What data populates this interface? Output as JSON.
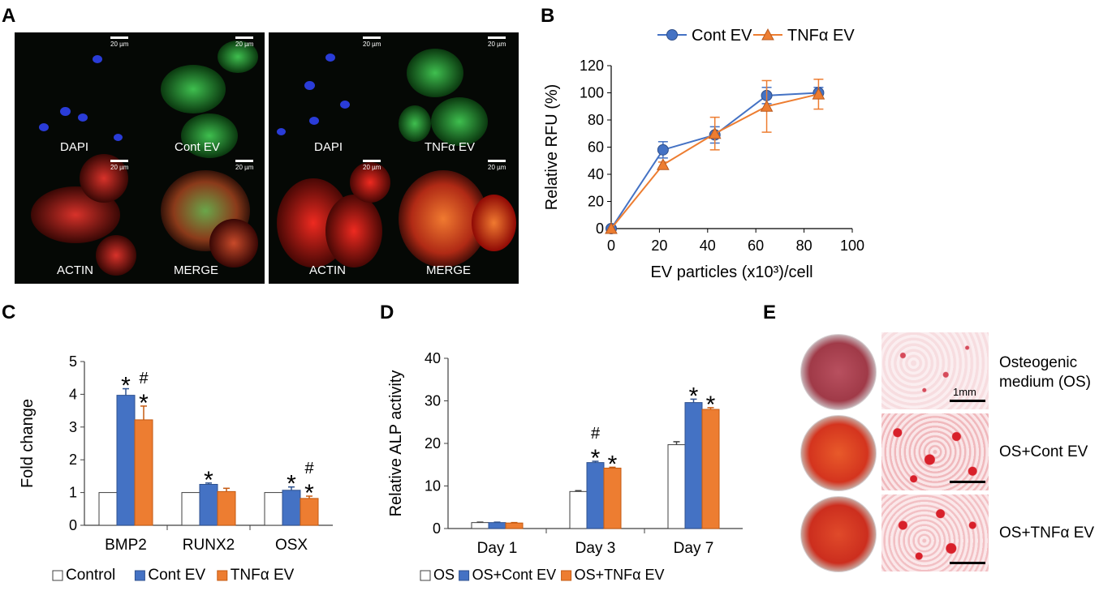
{
  "panels": {
    "a": "A",
    "b": "B",
    "c": "C",
    "d": "D",
    "e": "E"
  },
  "panel_a": {
    "scale_text": "20 µm",
    "left_block": {
      "top_left": "DAPI",
      "top_right": "Cont EV",
      "bottom_left": "ACTIN",
      "bottom_right": "MERGE"
    },
    "right_block": {
      "top_left": "DAPI",
      "top_right": "TNFα EV",
      "bottom_left": "ACTIN",
      "bottom_right": "MERGE"
    }
  },
  "colors": {
    "cont": "#4472c4",
    "tnf": "#ed7d31",
    "control": "#ffffff",
    "axis": "#404040"
  },
  "chart_data": [
    {
      "id": "B",
      "type": "line",
      "xlabel": "EV particles (x10³)/cell",
      "ylabel": "Relative RFU (%)",
      "xlim": [
        0,
        100
      ],
      "ylim": [
        0,
        120
      ],
      "xticks": [
        0,
        20,
        40,
        60,
        80,
        100
      ],
      "yticks": [
        0,
        20,
        40,
        60,
        80,
        100,
        120
      ],
      "legend_position": "top",
      "series": [
        {
          "name": "Cont EV",
          "marker": "circle",
          "x": [
            0,
            21.5,
            43,
            64.5,
            86
          ],
          "y": [
            0,
            58,
            69,
            98,
            100
          ],
          "err": [
            0,
            6,
            6,
            6,
            4
          ]
        },
        {
          "name": "TNFα EV",
          "marker": "triangle",
          "x": [
            0,
            21.5,
            43,
            64.5,
            86
          ],
          "y": [
            0,
            47,
            70,
            90,
            99
          ],
          "err": [
            0,
            2,
            12,
            19,
            11
          ]
        }
      ]
    },
    {
      "id": "C",
      "type": "bar",
      "ylabel": "Fold change",
      "categories": [
        "BMP2",
        "RUNX2",
        "OSX"
      ],
      "ylim": [
        0,
        5
      ],
      "yticks": [
        0,
        1,
        2,
        3,
        4,
        5
      ],
      "legend_position": "bottom",
      "series": [
        {
          "name": "Control",
          "values": [
            1,
            1,
            1
          ],
          "err": [
            0,
            0,
            0
          ],
          "marks": [
            "",
            "",
            ""
          ]
        },
        {
          "name": "Cont EV",
          "values": [
            3.97,
            1.25,
            1.07
          ],
          "err": [
            0.2,
            0.04,
            0.1
          ],
          "marks": [
            "*",
            "*",
            "*"
          ]
        },
        {
          "name": "TNFα EV",
          "values": [
            3.22,
            1.03,
            0.82
          ],
          "err": [
            0.42,
            0.1,
            0.07
          ],
          "marks": [
            "#\n*",
            "",
            "#\n*"
          ]
        }
      ]
    },
    {
      "id": "D",
      "type": "bar",
      "ylabel": "Relative ALP activity",
      "categories": [
        "Day 1",
        "Day 3",
        "Day 7"
      ],
      "ylim": [
        0,
        40
      ],
      "yticks": [
        0,
        10,
        20,
        30,
        40
      ],
      "legend_position": "bottom",
      "series": [
        {
          "name": "OS",
          "values": [
            1.4,
            8.7,
            19.7
          ],
          "err": [
            0.1,
            0.2,
            0.7
          ],
          "marks": [
            "",
            "",
            ""
          ]
        },
        {
          "name": "OS+Cont EV",
          "values": [
            1.4,
            15.5,
            29.6
          ],
          "err": [
            0.1,
            0.3,
            0.8
          ],
          "marks": [
            "",
            "#\n*",
            "*"
          ]
        },
        {
          "name": "OS+TNFα EV",
          "values": [
            1.3,
            14.2,
            28.0
          ],
          "err": [
            0.1,
            0.2,
            0.4
          ],
          "marks": [
            "",
            "*",
            "*"
          ]
        }
      ]
    }
  ],
  "panel_e": {
    "rows": [
      {
        "label_line1": "Osteogenic",
        "label_line2": "medium (OS)",
        "scale_text": "1mm",
        "intensity": "low"
      },
      {
        "label_line1": "OS+Cont EV",
        "label_line2": "",
        "scale_text": "",
        "intensity": "high"
      },
      {
        "label_line1": "OS+TNFα EV",
        "label_line2": "",
        "scale_text": "",
        "intensity": "high"
      }
    ]
  }
}
